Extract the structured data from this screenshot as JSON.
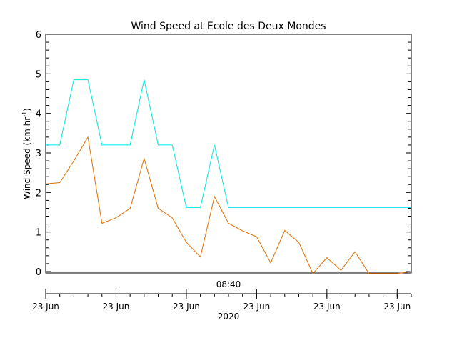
{
  "chart_data": {
    "type": "line",
    "title": "Wind Speed at Ecole des Deux Mondes",
    "ylabel_main": "Wind Speed (km hr",
    "ylabel_sup": "-1",
    "ylabel_close": ")",
    "ylim": [
      0,
      6
    ],
    "yticks": [
      "0",
      "1",
      "2",
      "3",
      "4",
      "5",
      "6"
    ],
    "xlim": [
      0,
      26
    ],
    "time_label": "08:40",
    "date_tick_labels": [
      "23 Jun",
      "23 Jun",
      "23 Jun",
      "23 Jun",
      "23 Jun",
      "23 Jun"
    ],
    "year_label": "2020",
    "series": [
      {
        "color": "#00e5e5",
        "values": [
          3.2,
          3.2,
          4.85,
          4.85,
          3.2,
          3.2,
          3.2,
          4.85,
          3.2,
          3.2,
          1.62,
          1.62,
          3.2,
          1.62,
          1.62,
          1.62,
          1.62,
          1.62,
          1.62,
          1.62,
          1.62,
          1.62,
          1.62,
          1.62,
          1.62,
          1.62,
          1.62
        ]
      },
      {
        "color": "#e06f00",
        "values": [
          2.22,
          2.25,
          2.8,
          3.4,
          1.22,
          1.36,
          1.6,
          2.86,
          1.6,
          1.36,
          0.74,
          0.37,
          1.9,
          1.22,
          1.03,
          0.88,
          0.22,
          1.04,
          0.74,
          -0.05,
          0.35,
          0.03,
          0.5,
          -0.05,
          -0.05,
          -0.05,
          0.0
        ]
      }
    ],
    "grid": false,
    "legend": "none"
  }
}
